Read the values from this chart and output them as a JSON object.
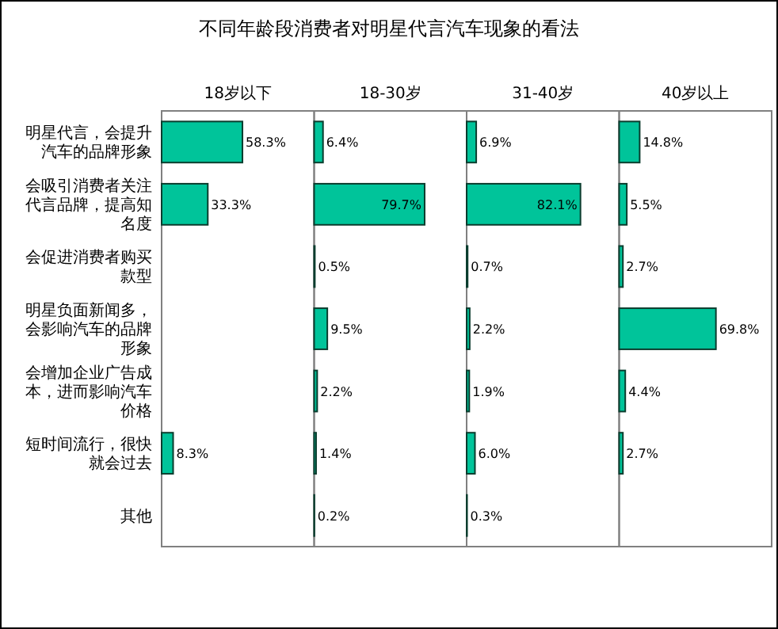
{
  "chart_data": [
    {
      "type": "bar",
      "orientation": "horizontal",
      "title": "不同年龄段消费者对明星代言汽车现象的看法",
      "subtitle": "18岁以下",
      "categories": [
        "明星代言，会提升汽车的品牌形象",
        "会吸引消费者关注代言品牌，提高知名度",
        "会促进消费者购买款型",
        "明星负面新闻多，会影响汽车的品牌形象",
        "会增加企业广告成本，进而影响汽车价格",
        "短时间流行，很快就会过去",
        "其他"
      ],
      "values": [
        58.3,
        33.3,
        null,
        null,
        null,
        8.3,
        null
      ],
      "value_labels": [
        "58.3%",
        "33.3%",
        null,
        null,
        null,
        "8.3%",
        null
      ],
      "color": "#00c49a",
      "xlim": [
        0,
        110
      ],
      "tick_labels": "y"
    },
    {
      "type": "bar",
      "orientation": "horizontal",
      "subtitle": "18-30岁",
      "categories": [
        "明星代言，会提升汽车的品牌形象",
        "会吸引消费者关注代言品牌，提高知名度",
        "会促进消费者购买款型",
        "明星负面新闻多，会影响汽车的品牌形象",
        "会增加企业广告成本，进而影响汽车价格",
        "短时间流行，很快就会过去",
        "其他"
      ],
      "values": [
        6.4,
        79.7,
        0.5,
        9.5,
        2.2,
        1.4,
        0.2
      ],
      "value_labels": [
        "6.4%",
        "79.7%",
        "0.5%",
        "9.5%",
        "2.2%",
        "1.4%",
        "0.2%"
      ],
      "color": "#00c49a",
      "xlim": [
        0,
        110
      ],
      "tick_labels": false
    },
    {
      "type": "bar",
      "orientation": "horizontal",
      "subtitle": "31-40岁",
      "categories": [
        "明星代言，会提升汽车的品牌形象",
        "会吸引消费者关注代言品牌，提高知名度",
        "会促进消费者购买款型",
        "明星负面新闻多，会影响汽车的品牌形象",
        "会增加企业广告成本，进而影响汽车价格",
        "短时间流行，很快就会过去",
        "其他"
      ],
      "values": [
        6.9,
        82.1,
        0.7,
        2.2,
        1.9,
        6.0,
        0.3
      ],
      "value_labels": [
        "6.9%",
        "82.1%",
        "0.7%",
        "2.2%",
        "1.9%",
        "6.0%",
        "0.3%"
      ],
      "color": "#00c49a",
      "xlim": [
        0,
        110
      ],
      "tick_labels": false
    },
    {
      "type": "bar",
      "orientation": "horizontal",
      "subtitle": "40岁以上",
      "categories": [
        "明星代言，会提升汽车的品牌形象",
        "会吸引消费者关注代言品牌，提高知名度",
        "会促进消费者购买款型",
        "明星负面新闻多，会影响汽车的品牌形象",
        "会增加企业广告成本，进而影响汽车价格",
        "短时间流行，很快就会过去",
        "其他"
      ],
      "values": [
        14.8,
        5.5,
        2.7,
        69.8,
        4.4,
        2.7,
        null
      ],
      "value_labels": [
        "14.8%",
        "5.5%",
        "2.7%",
        "69.8%",
        "4.4%",
        "2.7%",
        null
      ],
      "color": "#00c49a",
      "xlim": [
        0,
        110
      ],
      "tick_labels": false
    }
  ]
}
